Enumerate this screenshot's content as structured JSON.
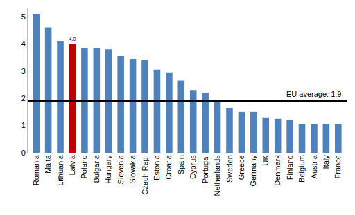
{
  "chart_data": {
    "type": "bar",
    "categories": [
      "Romania",
      "Malta",
      "Lithuania",
      "Latvia",
      "Poland",
      "Bulgaria",
      "Hungary",
      "Slovenia",
      "Slovakia",
      "Czech Rep.",
      "Estonia",
      "Croatia",
      "Spain",
      "Cyprus",
      "Portugal",
      "Netherlands",
      "Sweden",
      "Greece",
      "Germany",
      "UK",
      "Denmark",
      "Finland",
      "Belgium",
      "Austria",
      "Italy",
      "France"
    ],
    "values": [
      5.1,
      4.6,
      4.1,
      4.0,
      3.85,
      3.85,
      3.8,
      3.55,
      3.45,
      3.4,
      3.05,
      2.95,
      2.65,
      2.3,
      2.2,
      1.9,
      1.65,
      1.5,
      1.5,
      1.3,
      1.25,
      1.2,
      1.05,
      1.05,
      1.05,
      1.05
    ],
    "value_labels": [
      null,
      null,
      null,
      "4.0",
      null,
      null,
      null,
      null,
      null,
      null,
      null,
      null,
      null,
      null,
      null,
      null,
      null,
      null,
      null,
      null,
      null,
      null,
      null,
      null,
      null,
      null
    ],
    "colors": [
      "#4f81bd",
      "#4f81bd",
      "#4f81bd",
      "#c00000",
      "#4f81bd",
      "#4f81bd",
      "#4f81bd",
      "#4f81bd",
      "#4f81bd",
      "#4f81bd",
      "#4f81bd",
      "#4f81bd",
      "#4f81bd",
      "#4f81bd",
      "#4f81bd",
      "#4f81bd",
      "#4f81bd",
      "#4f81bd",
      "#4f81bd",
      "#4f81bd",
      "#4f81bd",
      "#4f81bd",
      "#4f81bd",
      "#4f81bd",
      "#4f81bd",
      "#4f81bd"
    ],
    "reference_line": {
      "value": 1.9,
      "label": "EU average: 1.9"
    },
    "ylim": [
      0,
      5.3
    ],
    "yticks": [
      0,
      1,
      2,
      3,
      4,
      5
    ],
    "grid": false
  }
}
